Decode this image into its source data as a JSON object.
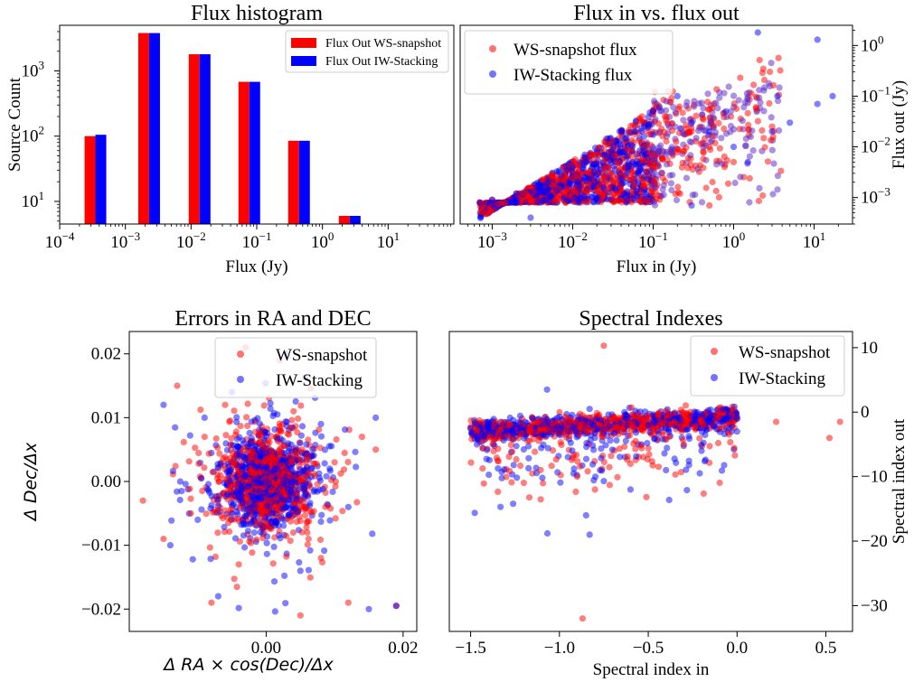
{
  "colors": {
    "ws": "#ff0000",
    "iw": "#0000ff"
  },
  "chart_data": [
    {
      "type": "bar",
      "title": "Flux histogram",
      "xlabel": "Flux (Jy)",
      "ylabel": "Source Count",
      "xscale": "log",
      "yscale": "log",
      "xlim": [
        0.0001,
        100
      ],
      "ylim": [
        4.5,
        5000
      ],
      "xticks": [
        {
          "value": 0.0001,
          "base": "10",
          "exp": "−4"
        },
        {
          "value": 0.001,
          "base": "10",
          "exp": "−3"
        },
        {
          "value": 0.01,
          "base": "10",
          "exp": "−2"
        },
        {
          "value": 0.1,
          "base": "10",
          "exp": "−1"
        },
        {
          "value": 1,
          "base": "10",
          "exp": "0"
        },
        {
          "value": 10,
          "base": "10",
          "exp": "1"
        }
      ],
      "yticks": [
        {
          "value": 10,
          "base": "10",
          "exp": "1"
        },
        {
          "value": 100,
          "base": "10",
          "exp": "2"
        },
        {
          "value": 1000,
          "base": "10",
          "exp": "3"
        }
      ],
      "legend_position": "top-right",
      "bin_centers": [
        0.00035,
        0.0023,
        0.0135,
        0.077,
        0.44,
        2.6
      ],
      "series": [
        {
          "name": "Flux Out WS-snapshot",
          "values": [
            100,
            3800,
            1800,
            680,
            85,
            6
          ]
        },
        {
          "name": "Flux Out IW-Stacking",
          "values": [
            105,
            3800,
            1800,
            680,
            85,
            6
          ]
        }
      ]
    },
    {
      "type": "scatter",
      "title": "Flux in vs. flux out",
      "xlabel": "Flux in (Jy)",
      "ylabel": "Flux out (Jy)",
      "xscale": "log",
      "yscale": "log",
      "xlim": [
        0.0004,
        30
      ],
      "ylim": [
        0.0003,
        2.5
      ],
      "xticks": [
        {
          "value": 0.001,
          "base": "10",
          "exp": "−3"
        },
        {
          "value": 0.01,
          "base": "10",
          "exp": "−2"
        },
        {
          "value": 0.1,
          "base": "10",
          "exp": "−1"
        },
        {
          "value": 1,
          "base": "10",
          "exp": "0"
        },
        {
          "value": 10,
          "base": "10",
          "exp": "1"
        }
      ],
      "yticks": [
        {
          "value": 0.001,
          "base": "10",
          "exp": "−3"
        },
        {
          "value": 0.01,
          "base": "10",
          "exp": "−2"
        },
        {
          "value": 0.1,
          "base": "10",
          "exp": "−1"
        },
        {
          "value": 1,
          "base": "10",
          "exp": "0"
        }
      ],
      "legend_position": "top-left",
      "series": [
        {
          "name": "WS-snapshot flux",
          "points": [
            [
              0.0007,
              0.0008
            ],
            [
              0.001,
              0.0009
            ],
            [
              0.002,
              0.0012
            ],
            [
              0.005,
              0.002
            ],
            [
              0.01,
              0.004
            ],
            [
              0.03,
              0.008
            ],
            [
              0.06,
              0.02
            ],
            [
              0.1,
              0.05
            ],
            [
              0.15,
              0.03
            ],
            [
              0.3,
              0.02
            ],
            [
              0.5,
              0.01
            ],
            [
              1,
              0.005
            ],
            [
              3,
              0.025
            ],
            [
              0.12,
              0.0009
            ],
            [
              0.5,
              0.0007
            ]
          ]
        },
        {
          "name": "IW-Stacking flux",
          "points": [
            [
              0.0007,
              0.0008
            ],
            [
              0.001,
              0.0009
            ],
            [
              0.003,
              0.0004
            ],
            [
              0.002,
              0.0012
            ],
            [
              0.005,
              0.002
            ],
            [
              0.01,
              0.004
            ],
            [
              0.03,
              0.008
            ],
            [
              0.06,
              0.02
            ],
            [
              0.1,
              0.05
            ],
            [
              0.12,
              0.06
            ],
            [
              0.2,
              0.1
            ],
            [
              0.3,
              0.03
            ],
            [
              0.5,
              0.02
            ],
            [
              0.8,
              0.05
            ],
            [
              1,
              0.01
            ],
            [
              1.5,
              0.005
            ],
            [
              2,
              1.8
            ],
            [
              3,
              0.02
            ],
            [
              3.5,
              0.1
            ],
            [
              5,
              0.03
            ],
            [
              11,
              1.3
            ],
            [
              11,
              0.07
            ],
            [
              17,
              0.1
            ],
            [
              0.3,
              0.0007
            ]
          ]
        }
      ]
    },
    {
      "type": "scatter",
      "title": "Errors in RA and DEC",
      "xlabel_base": "Δ RA × cos(Dec)/Δx",
      "ylabel_base": "Δ Dec/Δx",
      "xlim": [
        -0.02,
        0.022
      ],
      "ylim": [
        -0.0235,
        0.0235
      ],
      "xticks": [
        {
          "value": 0.0,
          "label": "0.00"
        },
        {
          "value": 0.02,
          "label": "0.02"
        }
      ],
      "yticks": [
        {
          "value": -0.02,
          "label": "−0.02"
        },
        {
          "value": -0.01,
          "label": "−0.01"
        },
        {
          "value": 0.0,
          "label": "0.00"
        },
        {
          "value": 0.01,
          "label": "0.01"
        },
        {
          "value": 0.02,
          "label": "0.02"
        }
      ],
      "legend_position": "top-right",
      "series": [
        {
          "name": "WS-snapshot",
          "points": [
            [
              -0.013,
              0.015
            ],
            [
              -0.018,
              -0.003
            ],
            [
              -0.015,
              -0.009
            ],
            [
              -0.008,
              -0.019
            ],
            [
              0.005,
              -0.021
            ],
            [
              0.012,
              -0.019
            ],
            [
              0.016,
              0.005
            ],
            [
              0.014,
              0.007
            ],
            [
              0.019,
              -0.0195
            ],
            [
              -0.003,
              0.021
            ],
            [
              0.002,
              0.019
            ],
            [
              -0.006,
              0.012
            ],
            [
              0.004,
              0.011
            ],
            [
              0.008,
              -0.012
            ],
            [
              -0.009,
              0.007
            ],
            [
              0.01,
              0.003
            ],
            [
              -0.011,
              -0.005
            ],
            [
              0.006,
              -0.008
            ],
            [
              -0.004,
              -0.013
            ],
            [
              0.0,
              0.0
            ]
          ]
        },
        {
          "name": "IW-Stacking",
          "points": [
            [
              -0.014,
              -0.01
            ],
            [
              -0.015,
              0.012
            ],
            [
              -0.007,
              -0.018
            ],
            [
              0.003,
              0.02
            ],
            [
              0.015,
              -0.02
            ],
            [
              0.016,
              0.01
            ],
            [
              0.019,
              -0.0195
            ],
            [
              -0.009,
              0.01
            ],
            [
              0.008,
              0.009
            ],
            [
              -0.01,
              -0.006
            ],
            [
              0.012,
              -0.004
            ],
            [
              -0.005,
              0.014
            ],
            [
              0.005,
              -0.014
            ],
            [
              0.0,
              0.0
            ]
          ]
        }
      ]
    },
    {
      "type": "scatter",
      "title": "Spectral Indexes",
      "xlabel": "Spectral index in",
      "ylabel": "Spectral index out",
      "xlim": [
        -1.62,
        0.65
      ],
      "ylim": [
        -34,
        12.5
      ],
      "xticks": [
        {
          "value": -1.5,
          "label": "−1.5"
        },
        {
          "value": -1.0,
          "label": "−1.0"
        },
        {
          "value": -0.5,
          "label": "−0.5"
        },
        {
          "value": 0.0,
          "label": "0.0"
        },
        {
          "value": 0.5,
          "label": "0.5"
        }
      ],
      "yticks": [
        {
          "value": 10,
          "label": "10"
        },
        {
          "value": 0,
          "label": "0"
        },
        {
          "value": -10,
          "label": "−10"
        },
        {
          "value": -20,
          "label": "−20"
        },
        {
          "value": -30,
          "label": "−30"
        }
      ],
      "legend_position": "top-right",
      "series": [
        {
          "name": "WS-snapshot",
          "points": [
            [
              -0.87,
              -32
            ],
            [
              -0.75,
              10.3
            ],
            [
              -1.5,
              -2.5
            ],
            [
              -1.0,
              -3
            ],
            [
              -0.5,
              -2
            ],
            [
              0.0,
              -1
            ],
            [
              -0.9,
              -10
            ],
            [
              -0.8,
              -12
            ],
            [
              -0.6,
              -8
            ],
            [
              -0.3,
              -5
            ],
            [
              0.22,
              -1.5
            ],
            [
              0.52,
              -4
            ],
            [
              0.58,
              -1.5
            ]
          ]
        },
        {
          "name": "IW-Stacking",
          "points": [
            [
              -1.5,
              -2.5
            ],
            [
              -1.3,
              -3
            ],
            [
              -1.1,
              -3.5
            ],
            [
              -1.0,
              -3
            ],
            [
              -0.5,
              -2
            ],
            [
              0.0,
              -1
            ],
            [
              -0.85,
              -16
            ],
            [
              -0.83,
              -19
            ],
            [
              -1.15,
              -1
            ],
            [
              -1.07,
              3.5
            ],
            [
              -0.83,
              0.5
            ],
            [
              -0.6,
              -12
            ],
            [
              -0.4,
              -9
            ],
            [
              -0.2,
              -6
            ],
            [
              0.0,
              -3
            ]
          ]
        }
      ]
    }
  ]
}
